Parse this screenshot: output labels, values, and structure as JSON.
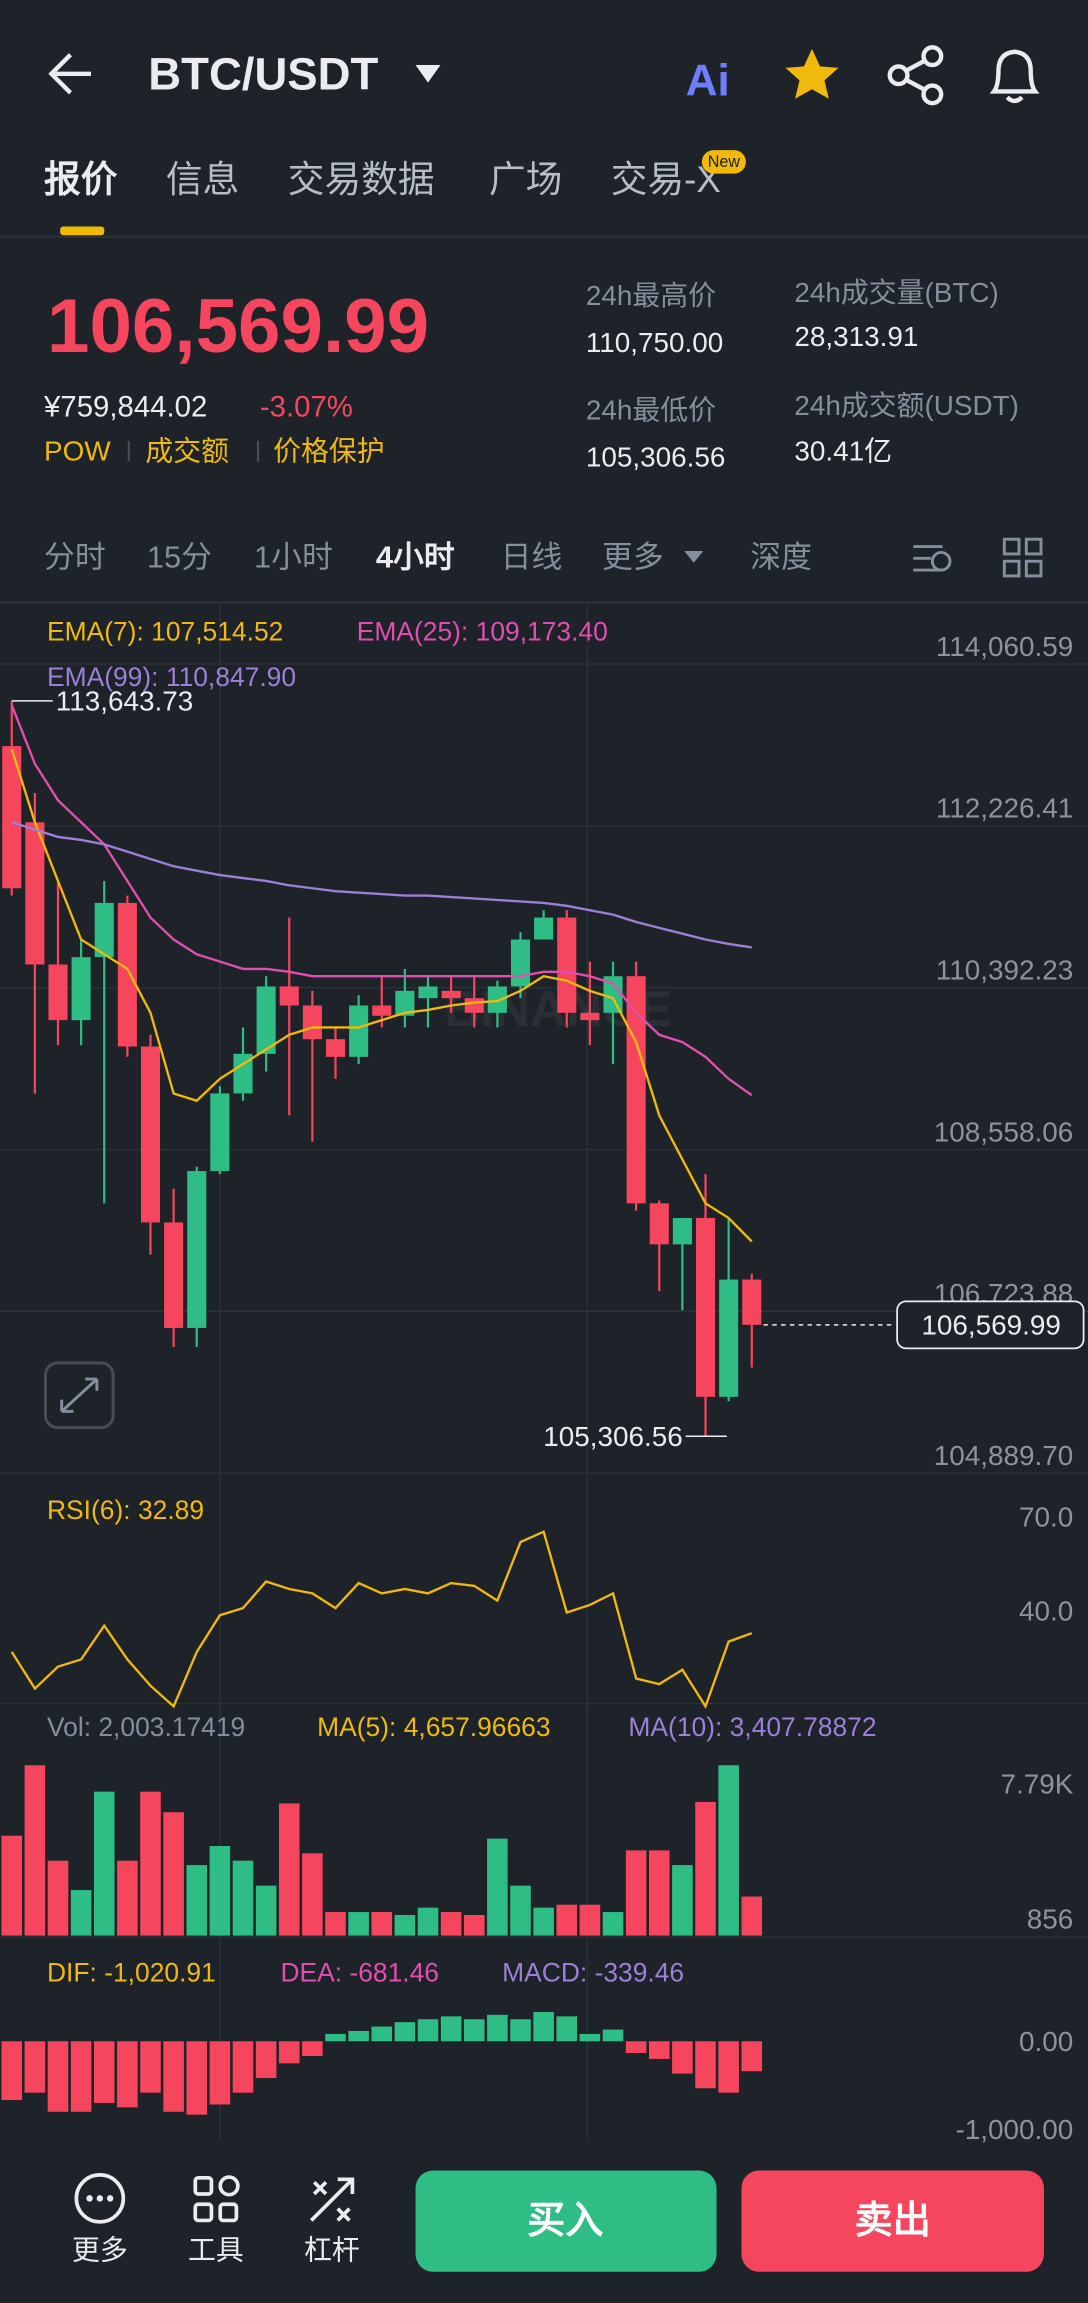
{
  "header": {
    "pair": "BTC/USDT",
    "ai": "Ai"
  },
  "tabs": {
    "items": [
      "报价",
      "信息",
      "交易数据",
      "广场",
      "交易-X"
    ],
    "badge": "New"
  },
  "quote": {
    "price": "106,569.99",
    "cny": "¥759,844.02",
    "change": "-3.07%",
    "tags": [
      "POW",
      "成交额",
      "价格保护"
    ]
  },
  "stats": [
    {
      "label": "24h最高价",
      "value": "110,750.00"
    },
    {
      "label": "24h最低价",
      "value": "105,306.56"
    },
    {
      "label": "24h成交量(BTC)",
      "value": "28,313.91"
    },
    {
      "label": "24h成交额(USDT)",
      "value": "30.41亿"
    }
  ],
  "intervals": {
    "items": [
      "分时",
      "15分",
      "1小时",
      "4小时",
      "日线",
      "更多",
      "深度"
    ]
  },
  "watermark": "BINANCE",
  "chart_data": [
    {
      "type": "candlestick",
      "up_color": "#2ebd85",
      "down_color": "#f6465d",
      "grid": true,
      "ylim": [
        104889.7,
        114760
      ],
      "yticks": [
        {
          "value": 114060.59,
          "label": "114,060.59"
        },
        {
          "value": 112226.41,
          "label": "112,226.41"
        },
        {
          "value": 110392.23,
          "label": "110,392.23"
        },
        {
          "value": 108558.06,
          "label": "108,558.06"
        },
        {
          "value": 106723.88,
          "label": "106,723.88"
        },
        {
          "value": 104889.7,
          "label": "104,889.70"
        }
      ],
      "open": [
        113131,
        112267,
        110655,
        110024,
        110738,
        111353,
        109725,
        107731,
        106535,
        108313,
        109193,
        109642,
        110406,
        110190,
        109808,
        109608,
        110190,
        110074,
        110273,
        110356,
        110273,
        110107,
        110406,
        110938,
        111187,
        110107,
        110107,
        110522,
        107947,
        107482,
        107781,
        105754,
        107083
      ],
      "high": [
        113643.73,
        112599,
        111602,
        110938,
        111602,
        111436,
        109858,
        108113,
        108362,
        109276,
        109941,
        110522,
        111187,
        110356,
        109941,
        110306,
        110522,
        110605,
        110522,
        110522,
        110522,
        110472,
        111021,
        111270,
        111270,
        110688,
        110688,
        110688,
        107980,
        107781,
        108279,
        107781,
        107150
      ],
      "low": [
        111436,
        109193,
        109741,
        109741,
        107947,
        109608,
        107366,
        106319,
        106319,
        108279,
        109110,
        109442,
        108944,
        108645,
        109359,
        109525,
        109941,
        109941,
        109941,
        110107,
        109941,
        109941,
        110273,
        110938,
        109941,
        109741,
        109525,
        107864,
        106950,
        106734,
        105306.56,
        105704,
        106086
      ],
      "close": [
        111519,
        110655,
        110024,
        110738,
        111353,
        109725,
        107731,
        106535,
        108313,
        109193,
        109642,
        110406,
        110190,
        109808,
        109608,
        110190,
        110074,
        110356,
        110406,
        110273,
        110107,
        110406,
        110938,
        111187,
        110107,
        110024,
        110522,
        107947,
        107482,
        107781,
        105754,
        107083,
        106569.99
      ],
      "series": [
        {
          "name": "EMA(7): 107,514.52",
          "color": "#f0b90b",
          "values": [
            113097,
            112267,
            111602,
            110938,
            110771,
            110605,
            110107,
            109193,
            109110,
            109359,
            109525,
            109692,
            109858,
            109941,
            109941,
            109941,
            110024,
            110107,
            110140,
            110190,
            110223,
            110240,
            110356,
            110522,
            110472,
            110356,
            110273,
            109775,
            108944,
            108445,
            107947,
            107781,
            107514.52
          ]
        },
        {
          "name": "EMA(25): 109,173.40",
          "color": "#e04fb0",
          "values": [
            113596,
            112931,
            112516,
            112267,
            112017,
            111602,
            111187,
            110938,
            110771,
            110688,
            110605,
            110605,
            110572,
            110522,
            110522,
            110522,
            110522,
            110522,
            110522,
            110522,
            110522,
            110522,
            110522,
            110572,
            110572,
            110522,
            110439,
            110107,
            109858,
            109775,
            109608,
            109359,
            109173.4
          ]
        },
        {
          "name": "EMA(99): 110,847.90",
          "color": "#9c7fd6",
          "values": [
            112267,
            112184,
            112101,
            112067,
            112017,
            111934,
            111851,
            111768,
            111718,
            111669,
            111635,
            111602,
            111552,
            111519,
            111486,
            111469,
            111453,
            111436,
            111436,
            111419,
            111403,
            111386,
            111370,
            111353,
            111320,
            111270,
            111220,
            111137,
            111070,
            111004,
            110938,
            110888,
            110847.9
          ]
        }
      ],
      "annotations": {
        "high": {
          "value": 113643.73,
          "label": "113,643.73"
        },
        "low": {
          "value": 105306.56,
          "label": "105,306.56"
        },
        "last": {
          "value": 106569.99,
          "label": "106,569.99"
        }
      }
    },
    {
      "type": "line",
      "ylim": [
        10.4,
        83.1
      ],
      "yticks": [
        {
          "value": 70,
          "label": "70.0"
        },
        {
          "value": 40,
          "label": "40.0"
        }
      ],
      "series": [
        {
          "name": "RSI(6): 32.89",
          "color": "#f0b90b",
          "values": [
            26.9,
            15.2,
            22.2,
            24.5,
            35.3,
            24.5,
            16.1,
            9.5,
            26.9,
            38.6,
            40.9,
            49.4,
            47.0,
            45.6,
            40.9,
            48.9,
            45.6,
            47.0,
            45.6,
            48.9,
            48.0,
            43.3,
            62.0,
            65.3,
            39.5,
            41.9,
            45.6,
            18.4,
            16.6,
            21.2,
            9.5,
            30.2,
            32.89
          ]
        }
      ]
    },
    {
      "type": "bar",
      "up_color": "#2ebd85",
      "down_color": "#f6465d",
      "ylim": [
        0,
        11530
      ],
      "yticks": [
        {
          "value": 7790,
          "label": "7.79K"
        },
        856
      ],
      "legend": [
        {
          "text": "Vol: 2,003.17419",
          "color": "#848e9c"
        },
        {
          "text": "MA(5): 4,657.96663",
          "color": "#f0b90b"
        },
        {
          "text": "MA(10): 3,407.78872",
          "color": "#9c7fd6"
        }
      ],
      "values": [
        5124,
        8742,
        3843,
        2336,
        7385,
        3843,
        7385,
        6330,
        3617,
        4597,
        3843,
        2562,
        6782,
        4220,
        1206,
        1206,
        1206,
        1055,
        1432,
        1206,
        1055,
        4974,
        2562,
        1432,
        1583,
        1583,
        1206,
        4371,
        4371,
        3617,
        6858,
        8742,
        2003.17419
      ]
    },
    {
      "type": "bar",
      "up_color": "#2ebd85",
      "down_color": "#f6465d",
      "ylim": [
        -1133,
        1133
      ],
      "yticks": [
        {
          "value": 0,
          "label": "0.00"
        },
        {
          "value": -1000,
          "label": "-1,000.00"
        }
      ],
      "legend": [
        {
          "text": "DIF: -1,020.91",
          "color": "#f0b90b"
        },
        {
          "text": "DEA: -681.46",
          "color": "#e04fb0"
        },
        {
          "text": "MACD: -339.46",
          "color": "#9c7fd6"
        }
      ],
      "values": [
        -667,
        -583,
        -800,
        -800,
        -700,
        -750,
        -583,
        -800,
        -833,
        -717,
        -583,
        -417,
        -250,
        -167,
        83,
        117,
        167,
        217,
        250,
        283,
        250,
        300,
        250,
        333,
        283,
        83,
        133,
        -133,
        -200,
        -367,
        -533,
        -583,
        -339.46
      ]
    }
  ],
  "footer": {
    "tools": [
      "更多",
      "工具",
      "杠杆"
    ],
    "buy": "买入",
    "sell": "卖出"
  }
}
